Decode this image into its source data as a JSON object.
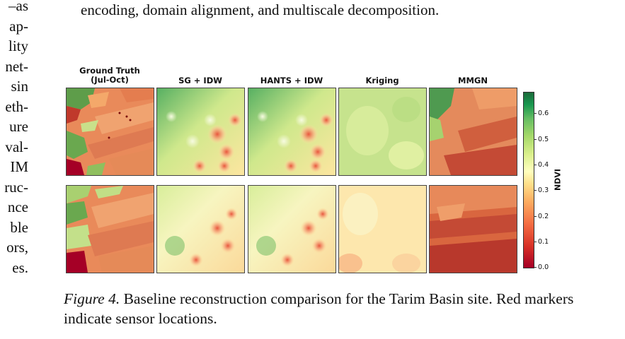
{
  "left_column_fragments": [
    "–as",
    "ap-",
    "lity",
    "net-",
    "sin",
    "eth-",
    "ure",
    "val-",
    "IM",
    "ruc-",
    "nce",
    "ble",
    "ors,",
    "es."
  ],
  "top_text": "encoding, domain alignment, and multiscale decomposition.",
  "figure": {
    "column_titles": [
      "Ground Truth\n(Jul-Oct)",
      "SG + IDW",
      "HANTS + IDW",
      "Kriging",
      "MMGN"
    ],
    "colorbar": {
      "label": "NDVI",
      "ticks": [
        "0.6",
        "0.5",
        "0.4",
        "0.3",
        "0.2",
        "0.1",
        "0.0"
      ],
      "colors": [
        "#a50026",
        "#d73027",
        "#f46d43",
        "#fdae61",
        "#fee08b",
        "#ffffbf",
        "#d9ef8b",
        "#a6d96a",
        "#66bd63",
        "#1a9850",
        "#1b6b3a"
      ]
    }
  },
  "caption": {
    "label": "Figure 4.",
    "text": " Baseline reconstruction comparison for the Tarim Basin site. Red markers indicate sensor locations."
  }
}
